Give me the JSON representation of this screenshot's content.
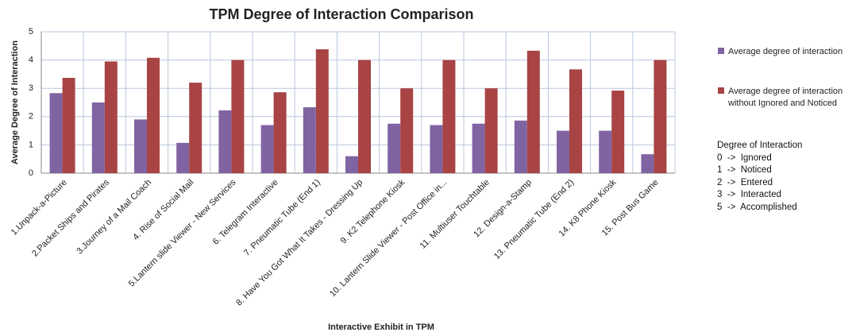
{
  "chart_data": {
    "type": "bar",
    "title": "TPM Degree of Interaction Comparison",
    "x_label": "Interactive Exhibit in TPM",
    "y_label": "Average Degree of Interaction",
    "categories": [
      "1.Unpack-a-Picture",
      "2.Packet Ships and Pirates",
      "3.Journey of a Mail Coach",
      "4. Rise of Social Mail",
      "5.Lantern slide Viewer - New Services",
      "6. Telegram Interactive",
      "7. Pneumatic Tube (End 1)",
      "8. Have You Got What It Takes - Dressing Up",
      "9. K2 Telephone Kiosk",
      "10. Lantern Slide Viewer - Post Office in...",
      "11. Multiuser Touchtable",
      "12. Design-a-Stamp",
      "13. Pneumatic Tube (End 2)",
      "14. K8 Phone Kiosk",
      "15. Post Bus Game"
    ],
    "series": [
      {
        "name": "Average degree of interaction",
        "color": "#8064a2",
        "values": [
          2.83,
          2.5,
          1.9,
          1.07,
          2.22,
          1.7,
          2.33,
          0.6,
          1.75,
          1.7,
          1.75,
          1.86,
          1.5,
          1.5,
          0.67
        ]
      },
      {
        "name": "Average degree of interaction without Ignored and Noticed",
        "color": "#a84444",
        "values": [
          3.37,
          3.95,
          4.08,
          3.2,
          4,
          2.86,
          4.38,
          4,
          3,
          4,
          3,
          4.33,
          3.67,
          2.92,
          4
        ]
      }
    ],
    "ylim": [
      0,
      5
    ],
    "yticks": [
      0,
      1,
      2,
      3,
      4,
      5
    ],
    "grid": true,
    "legend_position": "right",
    "legend_note": {
      "title": "Degree of Interaction",
      "lines": [
        "0  ->  Ignored",
        "1  ->  Noticed",
        "2  ->  Entered",
        "3  ->  Interacted",
        "5  ->  Accomplished"
      ]
    }
  }
}
